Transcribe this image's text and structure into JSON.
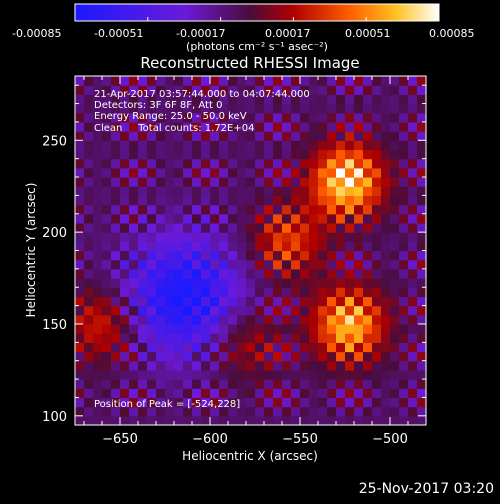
{
  "colorbar": {
    "tick_labels": [
      "-0.00085",
      "-0.00051",
      "-0.00017",
      "0.00017",
      "0.00051",
      "0.00085"
    ],
    "tick_values": [
      -0.00085,
      -0.00051,
      -0.00017,
      0.00017,
      0.00051,
      0.00085
    ],
    "range": [
      -0.00085,
      0.00085
    ],
    "unit_label": "(photons cm⁻² s⁻¹ asec⁻²)",
    "colors": [
      "#1a1aff",
      "#6a1ad8",
      "#5a1040",
      "#b00000",
      "#ff5a00",
      "#ffc020",
      "#ffffff"
    ]
  },
  "chart_data": {
    "type": "heatmap",
    "title": "Reconstructed RHESSI Image",
    "xlabel": "Heliocentric X (arcsec)",
    "ylabel": "Heliocentric Y (arcsec)",
    "xlim": [
      -675,
      -480
    ],
    "ylim": [
      95,
      285
    ],
    "x_ticks": [
      -650,
      -600,
      -550,
      -500
    ],
    "y_ticks": [
      100,
      150,
      200,
      250
    ],
    "x_tick_labels": [
      "−650",
      "−600",
      "−550",
      "−500"
    ],
    "y_tick_labels": [
      "100",
      "150",
      "200",
      "250"
    ],
    "grid": false,
    "annotations": [
      "21-Apr-2017 03:57:44.000 to 04:07:44.000",
      "Detectors: 3F 6F 8F, Att 0",
      "Energy Range: 25.0 - 50.0 keV",
      "Clean     Total counts: 1.72E+04"
    ],
    "peak_label": "Position of Peak = [-524,228]",
    "peak": [
      -524,
      228
    ],
    "sources": [
      {
        "x": -524,
        "y": 228,
        "peak": 0.00085
      },
      {
        "x": -523,
        "y": 150,
        "peak": 0.00075
      },
      {
        "x": -557,
        "y": 195,
        "peak": 0.00045
      },
      {
        "x": -660,
        "y": 150,
        "peak": 0.0004
      },
      {
        "x": -580,
        "y": 140,
        "peak": 0.0003
      }
    ],
    "minimum": {
      "x": -615,
      "y": 165,
      "value": -0.0008
    }
  },
  "footer": {
    "timestamp": "25-Nov-2017 03:20"
  }
}
